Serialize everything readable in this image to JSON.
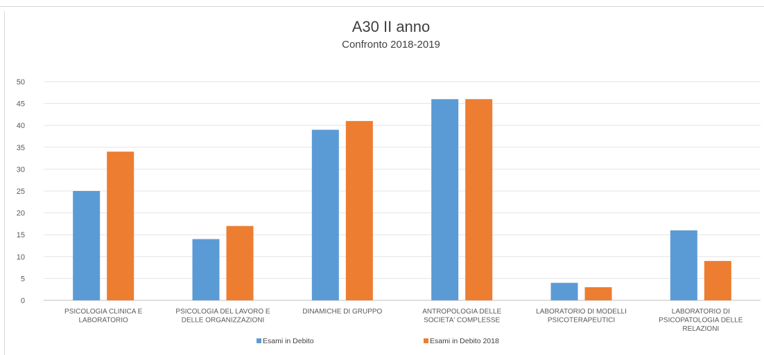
{
  "chart_data": {
    "type": "bar",
    "title": "A30 II anno",
    "subtitle": "Confronto 2018-2019",
    "categories": [
      [
        "PSICOLOGIA CLINICA E",
        "LABORATORIO"
      ],
      [
        "PSICOLOGIA DEL LAVORO E",
        "DELLE ORGANIZZAZIONI"
      ],
      [
        "DINAMICHE DI GRUPPO"
      ],
      [
        "ANTROPOLOGIA DELLE",
        "SOCIETA' COMPLESSE"
      ],
      [
        "LABORATORIO DI MODELLI",
        "PSICOTERAPEUTICI"
      ],
      [
        "LABORATORIO DI",
        "PSICOPATOLOGIA DELLE",
        "RELAZIONI"
      ]
    ],
    "series": [
      {
        "name": "Esami in Debito",
        "color": "#5b9bd5",
        "values": [
          25,
          14,
          39,
          46,
          4,
          16
        ]
      },
      {
        "name": "Esami in Debito 2018",
        "color": "#ed7d31",
        "values": [
          34,
          17,
          41,
          46,
          3,
          9
        ]
      }
    ],
    "ylim": [
      0,
      50
    ],
    "yticks": [
      0,
      5,
      10,
      15,
      20,
      25,
      30,
      35,
      40,
      45,
      50
    ],
    "grid": true,
    "legend": "bottom"
  }
}
